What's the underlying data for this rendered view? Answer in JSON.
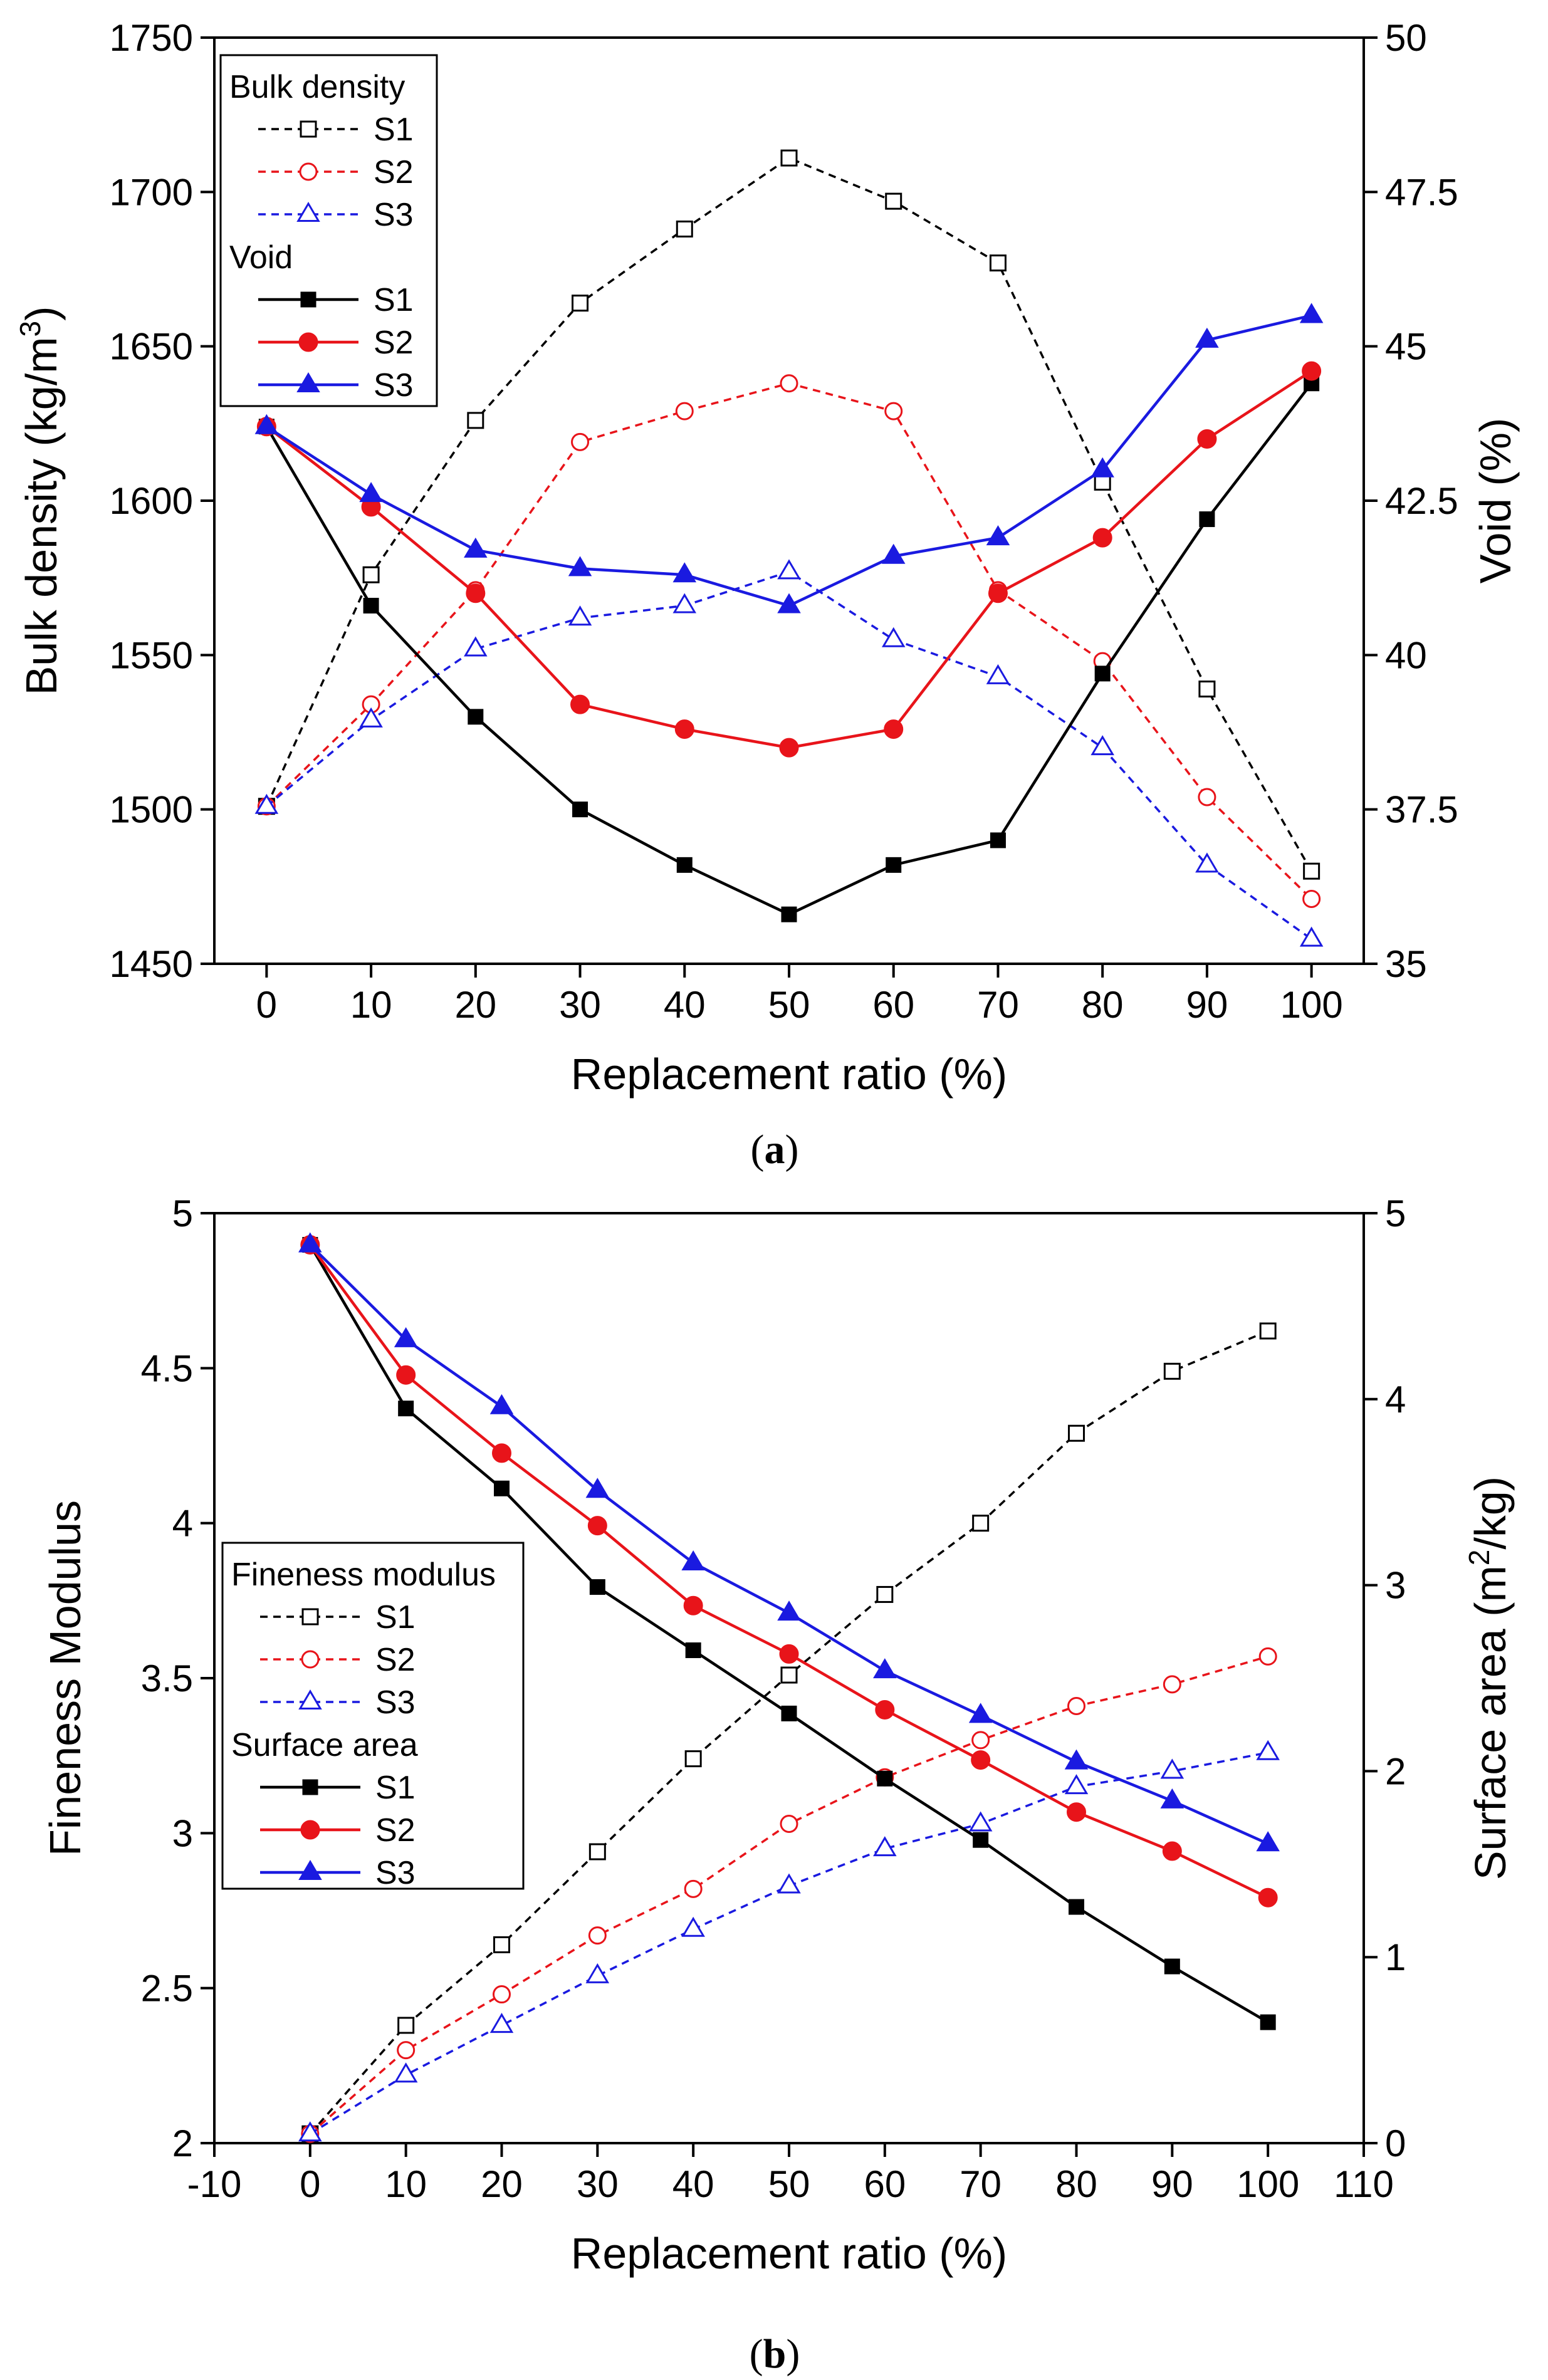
{
  "chart_data": [
    {
      "type": "line",
      "panel_label": "a",
      "title": "",
      "xlabel": "Replacement ratio (%)",
      "ylabel_prefix": "Bulk density (kg/m",
      "ylabel_sup": "3",
      "ylabel_suffix": ")",
      "y2label": "Void (%)",
      "x": [
        0,
        10,
        20,
        30,
        40,
        50,
        60,
        70,
        80,
        90,
        100
      ],
      "xlim": [
        -5,
        105
      ],
      "ylim": [
        1450,
        1750
      ],
      "y2lim": [
        35,
        50
      ],
      "x_ticks": [
        "0",
        "10",
        "20",
        "30",
        "40",
        "50",
        "60",
        "70",
        "80",
        "90",
        "100"
      ],
      "y_ticks": [
        "1450",
        "1500",
        "1550",
        "1600",
        "1650",
        "1700",
        "1750"
      ],
      "y2_ticks": [
        "35",
        "37.5",
        "40",
        "42.5",
        "45",
        "47.5",
        "50"
      ],
      "legend": {
        "group1_title": "Bulk density",
        "group2_title": "Void",
        "position": "top-left"
      },
      "series": [
        {
          "name": "S1",
          "group": "Bulk density",
          "axis": "left",
          "color": "#000000",
          "style": "dashed",
          "marker": "square-open",
          "values": [
            1501,
            1576,
            1626,
            1664,
            1688,
            1711,
            1697,
            1677,
            1606,
            1539,
            1480
          ]
        },
        {
          "name": "S2",
          "group": "Bulk density",
          "axis": "left",
          "color": "#e8141a",
          "style": "dashed",
          "marker": "circle-open",
          "values": [
            1501,
            1534,
            1571,
            1619,
            1629,
            1638,
            1629,
            1571,
            1548,
            1504,
            1471
          ]
        },
        {
          "name": "S3",
          "group": "Bulk density",
          "axis": "left",
          "color": "#1a1ae0",
          "style": "dashed",
          "marker": "triangle-open",
          "values": [
            1501,
            1529,
            1552,
            1562,
            1566,
            1577,
            1555,
            1543,
            1520,
            1482,
            1458
          ]
        },
        {
          "name": "S1",
          "group": "Void",
          "axis": "right",
          "color": "#000000",
          "style": "solid",
          "marker": "square-filled",
          "values": [
            43.7,
            40.8,
            39.0,
            37.5,
            36.6,
            35.8,
            36.6,
            37.0,
            39.7,
            42.2,
            44.4
          ]
        },
        {
          "name": "S2",
          "group": "Void",
          "axis": "right",
          "color": "#e8141a",
          "style": "solid",
          "marker": "circle-filled",
          "values": [
            43.7,
            42.4,
            41.0,
            39.2,
            38.8,
            38.5,
            38.8,
            41.0,
            41.9,
            43.5,
            44.6
          ]
        },
        {
          "name": "S3",
          "group": "Void",
          "axis": "right",
          "color": "#1a1ae0",
          "style": "solid",
          "marker": "triangle-filled",
          "values": [
            43.7,
            42.6,
            41.7,
            41.4,
            41.3,
            40.8,
            41.6,
            41.9,
            43.0,
            45.1,
            45.5
          ]
        }
      ]
    },
    {
      "type": "line",
      "panel_label": "b",
      "title": "",
      "xlabel": "Replacement ratio (%)",
      "ylabel": "Fineness Modulus",
      "y2label_prefix": "Surface area (m",
      "y2label_sup": "2",
      "y2label_suffix": "/kg)",
      "x": [
        0,
        10,
        20,
        30,
        40,
        50,
        60,
        70,
        80,
        90,
        100
      ],
      "xlim": [
        -10,
        110
      ],
      "ylim": [
        2,
        5
      ],
      "y2lim": [
        0,
        5
      ],
      "x_ticks": [
        "-10",
        "0",
        "10",
        "20",
        "30",
        "40",
        "50",
        "60",
        "70",
        "80",
        "90",
        "100",
        "110"
      ],
      "y_ticks": [
        "2",
        "2.5",
        "3",
        "3.5",
        "4",
        "4.5",
        "5"
      ],
      "y2_ticks": [
        "0",
        "1",
        "2",
        "3",
        "4",
        "5"
      ],
      "legend": {
        "group1_title": "Fineness modulus",
        "group2_title": "Surface area",
        "position": "center-left"
      },
      "series": [
        {
          "name": "S1",
          "group": "Fineness modulus",
          "axis": "left",
          "color": "#000000",
          "style": "dashed",
          "marker": "square-open",
          "values": [
            2.03,
            2.38,
            2.64,
            2.94,
            3.24,
            3.51,
            3.77,
            4.0,
            4.29,
            4.49,
            4.62
          ]
        },
        {
          "name": "S2",
          "group": "Fineness modulus",
          "axis": "left",
          "color": "#e8141a",
          "style": "dashed",
          "marker": "circle-open",
          "values": [
            2.03,
            2.3,
            2.48,
            2.67,
            2.82,
            3.03,
            3.18,
            3.3,
            3.41,
            3.48,
            3.57
          ]
        },
        {
          "name": "S3",
          "group": "Fineness modulus",
          "axis": "left",
          "color": "#1a1ae0",
          "style": "dashed",
          "marker": "triangle-open",
          "values": [
            2.03,
            2.22,
            2.38,
            2.54,
            2.69,
            2.83,
            2.95,
            3.03,
            3.15,
            3.2,
            3.26
          ]
        },
        {
          "name": "S1",
          "group": "Surface area",
          "axis": "right",
          "color": "#000000",
          "style": "solid",
          "marker": "square-filled",
          "values": [
            4.83,
            3.95,
            3.52,
            2.99,
            2.65,
            2.31,
            1.96,
            1.63,
            1.27,
            0.95,
            0.65
          ]
        },
        {
          "name": "S2",
          "group": "Surface area",
          "axis": "right",
          "color": "#e8141a",
          "style": "solid",
          "marker": "circle-filled",
          "values": [
            4.83,
            4.13,
            3.71,
            3.32,
            2.89,
            2.63,
            2.33,
            2.06,
            1.78,
            1.57,
            1.32
          ]
        },
        {
          "name": "S3",
          "group": "Surface area",
          "axis": "right",
          "color": "#1a1ae0",
          "style": "solid",
          "marker": "triangle-filled",
          "values": [
            4.83,
            4.32,
            3.96,
            3.51,
            3.12,
            2.85,
            2.54,
            2.3,
            2.05,
            1.84,
            1.61
          ]
        }
      ]
    }
  ]
}
